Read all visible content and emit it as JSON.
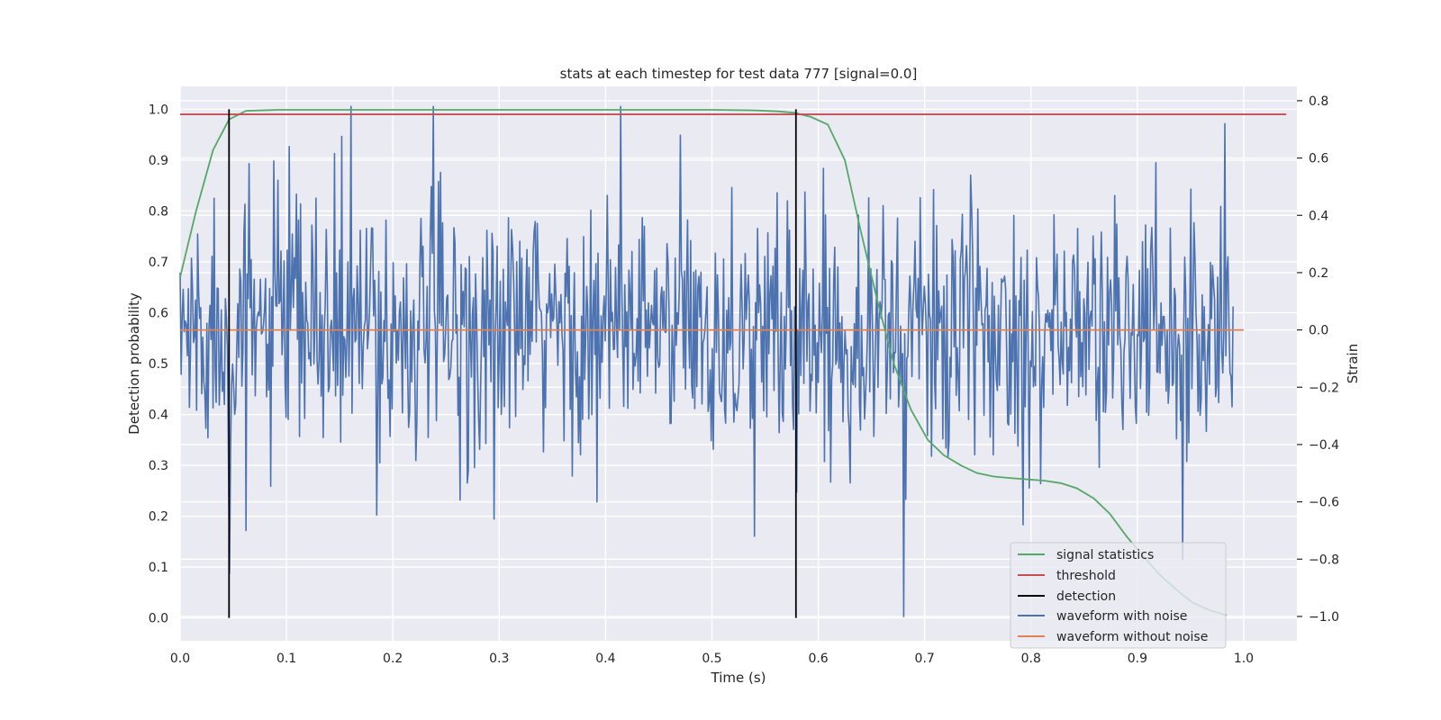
{
  "chart_data": {
    "type": "line",
    "title": "stats at each timestep for test data 777 [signal=0.0]",
    "xlabel": "Time (s)",
    "ylabel": "Detection probability",
    "y2label": "Strain",
    "xlim": [
      0.0,
      1.05
    ],
    "ylim": [
      -0.045,
      1.045
    ],
    "y2lim": [
      -1.085,
      0.85
    ],
    "x_ticks": [
      "0.0",
      "0.1",
      "0.2",
      "0.3",
      "0.4",
      "0.5",
      "0.6",
      "0.7",
      "0.8",
      "0.9",
      "1.0"
    ],
    "y_ticks": [
      "0.0",
      "0.1",
      "0.2",
      "0.3",
      "0.4",
      "0.5",
      "0.6",
      "0.7",
      "0.8",
      "0.9",
      "1.0"
    ],
    "y2_ticks": [
      "−1.0",
      "−0.8",
      "−0.6",
      "−0.4",
      "−0.2",
      "0.0",
      "0.2",
      "0.4",
      "0.6",
      "0.8"
    ],
    "grid": true,
    "legend_position": "lower-right",
    "colors": {
      "signal": "#55a868",
      "threshold": "#c44e52",
      "detection": "#000000",
      "noise": "#4c72b0",
      "clean": "#dd8452",
      "background": "#eaeaf2"
    },
    "legend": {
      "signal": "signal statistics",
      "threshold": "threshold",
      "detection": "detection",
      "noise": "waveform with noise",
      "clean": "waveform without noise"
    },
    "threshold": {
      "y": 0.99
    },
    "detections": [
      {
        "x": 0.046
      },
      {
        "x": 0.579
      }
    ],
    "signal_statistics": {
      "x": [
        0.0,
        0.015,
        0.031,
        0.046,
        0.062,
        0.077,
        0.093,
        0.15,
        0.3,
        0.45,
        0.5,
        0.54,
        0.562,
        0.578,
        0.593,
        0.609,
        0.625,
        0.64,
        0.656,
        0.671,
        0.687,
        0.703,
        0.718,
        0.734,
        0.749,
        0.765,
        0.78,
        0.812,
        0.828,
        0.843,
        0.859,
        0.874,
        0.89,
        0.906,
        0.921,
        0.937,
        0.952,
        0.968,
        0.984
      ],
      "y": [
        0.67,
        0.8,
        0.92,
        0.98,
        0.997,
        0.998,
        0.999,
        0.999,
        0.999,
        0.999,
        0.999,
        0.998,
        0.996,
        0.993,
        0.985,
        0.97,
        0.9,
        0.76,
        0.62,
        0.5,
        0.41,
        0.35,
        0.32,
        0.3,
        0.285,
        0.278,
        0.275,
        0.27,
        0.265,
        0.255,
        0.235,
        0.205,
        0.16,
        0.12,
        0.085,
        0.055,
        0.03,
        0.015,
        0.005
      ]
    },
    "waveform_with_noise": {
      "x_start": 0.0,
      "x_end": 0.99,
      "n_points": 1024,
      "anchors": [
        {
          "x": 0.0,
          "y": 0.2
        },
        {
          "x": 0.046,
          "y": -0.85
        },
        {
          "x": 0.062,
          "y": -0.7
        },
        {
          "x": 0.103,
          "y": 0.64
        },
        {
          "x": 0.161,
          "y": 0.78
        },
        {
          "x": 0.238,
          "y": 0.78
        },
        {
          "x": 0.295,
          "y": -0.66
        },
        {
          "x": 0.392,
          "y": -0.6
        },
        {
          "x": 0.414,
          "y": 0.78
        },
        {
          "x": 0.54,
          "y": -0.72
        },
        {
          "x": 0.68,
          "y": -1.0
        },
        {
          "x": 0.943,
          "y": -0.8
        },
        {
          "x": 0.982,
          "y": 0.72
        }
      ]
    },
    "waveform_without_noise": {
      "x": [
        0.0,
        1.0
      ],
      "y": [
        0.0,
        0.0
      ]
    }
  }
}
